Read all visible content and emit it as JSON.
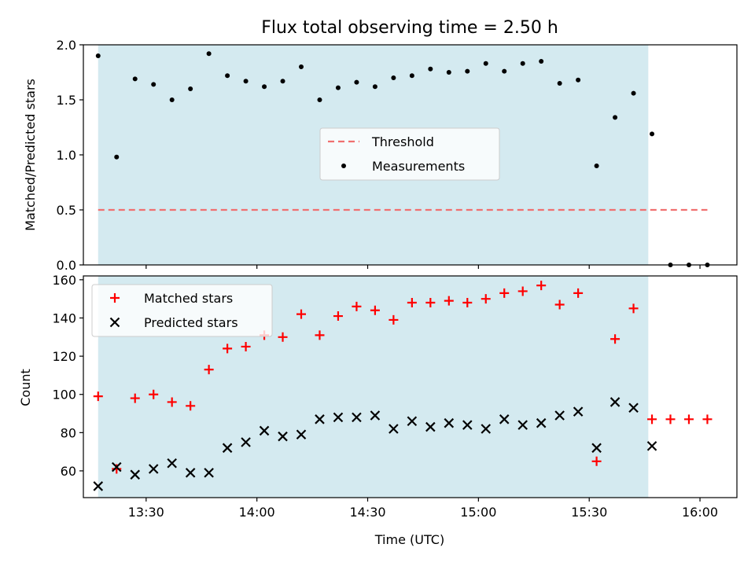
{
  "chart_data": [
    {
      "type": "scatter",
      "title": "Flux total observing time = 2.50 h",
      "ylabel": "Matched/Predicted stars",
      "ylim": [
        0,
        2.0
      ],
      "yticks": [
        "0.0",
        "0.5",
        "1.0",
        "1.5",
        "2.0"
      ],
      "xlim": [
        "13:13",
        "16:10"
      ],
      "shaded_range": [
        "13:17",
        "15:46"
      ],
      "legend": {
        "placement": "center",
        "entries": [
          "Threshold",
          "Measurements"
        ]
      },
      "threshold": {
        "name": "Threshold",
        "value": 0.5,
        "x_range": [
          "13:17",
          "16:02"
        ],
        "color": "#f07070",
        "style": "dashed"
      },
      "series": [
        {
          "name": "Measurements",
          "color": "#000000",
          "marker": "dot",
          "x": [
            "13:17",
            "13:22",
            "13:27",
            "13:32",
            "13:37",
            "13:42",
            "13:47",
            "13:52",
            "13:57",
            "14:02",
            "14:07",
            "14:12",
            "14:17",
            "14:22",
            "14:27",
            "14:32",
            "14:37",
            "14:42",
            "14:47",
            "14:52",
            "14:57",
            "15:02",
            "15:07",
            "15:12",
            "15:17",
            "15:22",
            "15:27",
            "15:32",
            "15:37",
            "15:42",
            "15:47",
            "15:52",
            "15:57",
            "16:02"
          ],
          "y": [
            1.9,
            0.98,
            1.69,
            1.64,
            1.5,
            1.6,
            1.92,
            1.72,
            1.67,
            1.62,
            1.67,
            1.8,
            1.5,
            1.61,
            1.66,
            1.62,
            1.7,
            1.72,
            1.78,
            1.75,
            1.76,
            1.83,
            1.76,
            1.83,
            1.85,
            1.65,
            1.68,
            0.9,
            1.34,
            1.56,
            1.19,
            0.0,
            0.0,
            0.0
          ]
        }
      ]
    },
    {
      "type": "scatter",
      "ylabel": "Count",
      "xlabel": "Time (UTC)",
      "ylim": [
        46,
        162
      ],
      "yticks": [
        "60",
        "80",
        "100",
        "120",
        "140",
        "160"
      ],
      "xticks": [
        "13:30",
        "14:00",
        "14:30",
        "15:00",
        "15:30",
        "16:00"
      ],
      "xlim": [
        "13:13",
        "16:10"
      ],
      "shaded_range": [
        "13:17",
        "15:46"
      ],
      "legend": {
        "placement": "top-left",
        "entries": [
          "Matched stars",
          "Predicted stars"
        ]
      },
      "series": [
        {
          "name": "Matched stars",
          "color": "#ff0000",
          "marker": "plus",
          "x": [
            "13:17",
            "13:22",
            "13:27",
            "13:32",
            "13:37",
            "13:42",
            "13:47",
            "13:52",
            "13:57",
            "14:02",
            "14:07",
            "14:12",
            "14:17",
            "14:22",
            "14:27",
            "14:32",
            "14:37",
            "14:42",
            "14:47",
            "14:52",
            "14:57",
            "15:02",
            "15:07",
            "15:12",
            "15:17",
            "15:22",
            "15:27",
            "15:32",
            "15:37",
            "15:42",
            "15:47",
            "15:52",
            "15:57",
            "16:02"
          ],
          "y": [
            99,
            61,
            98,
            100,
            96,
            94,
            113,
            124,
            125,
            131,
            130,
            142,
            131,
            141,
            146,
            144,
            139,
            148,
            148,
            149,
            148,
            150,
            153,
            154,
            157,
            147,
            153,
            65,
            129,
            145,
            87,
            87,
            87,
            87
          ]
        },
        {
          "name": "Predicted stars",
          "color": "#000000",
          "marker": "x",
          "x": [
            "13:17",
            "13:22",
            "13:27",
            "13:32",
            "13:37",
            "13:42",
            "13:47",
            "13:52",
            "13:57",
            "14:02",
            "14:07",
            "14:12",
            "14:17",
            "14:22",
            "14:27",
            "14:32",
            "14:37",
            "14:42",
            "14:47",
            "14:52",
            "14:57",
            "15:02",
            "15:07",
            "15:12",
            "15:17",
            "15:22",
            "15:27",
            "15:32",
            "15:37",
            "15:42",
            "15:47"
          ],
          "y": [
            52,
            62,
            58,
            61,
            64,
            59,
            59,
            72,
            75,
            81,
            78,
            79,
            87,
            88,
            88,
            89,
            82,
            86,
            83,
            85,
            84,
            82,
            87,
            84,
            85,
            89,
            91,
            72,
            96,
            93,
            73
          ]
        }
      ]
    }
  ],
  "colors": {
    "shade": "#d4eaf0",
    "threshold": "#f07070",
    "matched": "#ff0000",
    "predicted": "#000000"
  }
}
